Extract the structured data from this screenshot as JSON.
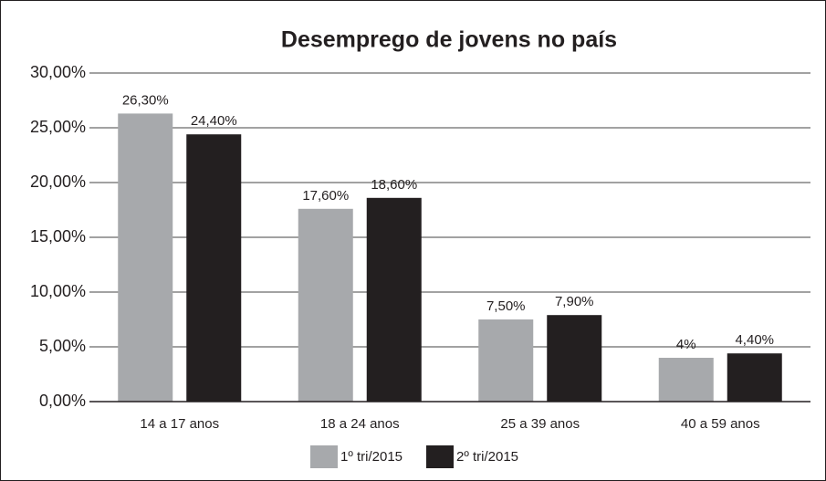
{
  "chart_data": {
    "type": "bar",
    "title": "Desemprego de jovens no país",
    "categories": [
      "14 a 17 anos",
      "18 a 24 anos",
      "25 a 39 anos",
      "40 a 59 anos"
    ],
    "series": [
      {
        "name": "1º tri/2015",
        "color": "#a7a9ac",
        "values": [
          26.3,
          17.6,
          7.5,
          4
        ],
        "value_labels": [
          "26,30%",
          "17,60%",
          "7,50%",
          "4%"
        ]
      },
      {
        "name": "2º tri/2015",
        "color": "#231f20",
        "values": [
          24.4,
          18.6,
          7.9,
          4.4
        ],
        "value_labels": [
          "24,40%",
          "18,60%",
          "7,90%",
          "4,40%"
        ]
      }
    ],
    "ylim": [
      0,
      30
    ],
    "yticks": [
      {
        "value": 0,
        "label": "0,00%"
      },
      {
        "value": 5,
        "label": "5,00%"
      },
      {
        "value": 10,
        "label": "10,00%"
      },
      {
        "value": 15,
        "label": "15,00%"
      },
      {
        "value": 20,
        "label": "20,00%"
      },
      {
        "value": 25,
        "label": "25,00%"
      },
      {
        "value": 30,
        "label": "30,00%"
      }
    ],
    "grid": true,
    "legend": "bottom"
  }
}
